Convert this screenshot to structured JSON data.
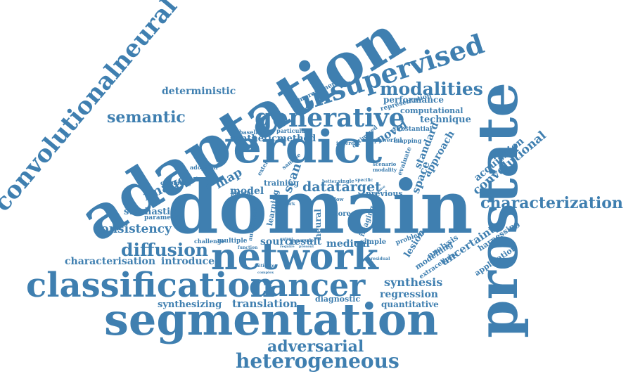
{
  "color": "#3f7fb0",
  "words": [
    {
      "id": "domain",
      "text": "domain"
    },
    {
      "id": "segmentation",
      "text": "segmentation"
    },
    {
      "id": "adaptation",
      "text": "adaptation"
    },
    {
      "id": "prostate",
      "text": "prostate"
    },
    {
      "id": "verdict",
      "text": "verdict"
    },
    {
      "id": "network",
      "text": "network"
    },
    {
      "id": "classification",
      "text": "classification"
    },
    {
      "id": "cancer",
      "text": "cancer"
    },
    {
      "id": "convolutionalneural",
      "text": "convolutionalneural"
    },
    {
      "id": "unsupervised",
      "text": "unsupervised"
    },
    {
      "id": "generative",
      "text": "generative"
    },
    {
      "id": "heterogeneous",
      "text": "heterogeneous"
    },
    {
      "id": "adversarial",
      "text": "adversarial"
    },
    {
      "id": "characterization",
      "text": "characterization"
    },
    {
      "id": "modalities",
      "text": "modalities"
    },
    {
      "id": "diffusion",
      "text": "diffusion"
    },
    {
      "id": "semantic",
      "text": "semantic"
    },
    {
      "id": "datatarget",
      "text": "datatarget"
    },
    {
      "id": "image",
      "text": "image"
    },
    {
      "id": "consistency",
      "text": "consistency"
    },
    {
      "id": "synthesis",
      "text": "synthesis"
    },
    {
      "id": "convolutional",
      "text": "convolutional"
    },
    {
      "id": "uncertainty",
      "text": "uncertainty"
    },
    {
      "id": "acquisition",
      "text": "acquisition"
    },
    {
      "id": "deterministic",
      "text": "deterministic"
    },
    {
      "id": "characterisation",
      "text": "characterisation"
    },
    {
      "id": "introduce",
      "text": "introduce"
    },
    {
      "id": "translation",
      "text": "translation"
    },
    {
      "id": "synthesizing",
      "text": "synthesizing"
    },
    {
      "id": "regression",
      "text": "regression"
    },
    {
      "id": "quantitative",
      "text": "quantitative"
    },
    {
      "id": "diagnostic",
      "text": "diagnostic"
    },
    {
      "id": "stochastic",
      "text": "stochastic"
    },
    {
      "id": "map",
      "text": "map"
    },
    {
      "id": "model",
      "text": "model"
    },
    {
      "id": "source",
      "text": "source"
    },
    {
      "id": "result",
      "text": "result"
    },
    {
      "id": "medical",
      "text": "medical"
    },
    {
      "id": "lesion",
      "text": "lesion"
    },
    {
      "id": "space",
      "text": "space"
    },
    {
      "id": "approach",
      "text": "approach"
    },
    {
      "id": "standard",
      "text": "standard"
    },
    {
      "id": "novel",
      "text": "novel"
    },
    {
      "id": "technique",
      "text": "technique"
    },
    {
      "id": "performance",
      "text": "performance"
    },
    {
      "id": "syntheticmethod",
      "text": "syntheticmethod"
    },
    {
      "id": "scan",
      "text": "scan"
    },
    {
      "id": "application",
      "text": "application"
    },
    {
      "id": "harnessing",
      "text": "harnessing"
    },
    {
      "id": "analysis",
      "text": "analysis"
    },
    {
      "id": "modelling",
      "text": "modelling"
    },
    {
      "id": "extracellular",
      "text": "extracellular"
    },
    {
      "id": "problem",
      "text": "problem"
    },
    {
      "id": "computational",
      "text": "computational"
    },
    {
      "id": "representation",
      "text": "representation"
    },
    {
      "id": "substantial",
      "text": "substantial"
    },
    {
      "id": "improvement",
      "text": "improvement"
    },
    {
      "id": "training",
      "text": "training"
    },
    {
      "id": "previous",
      "text": "previous"
    },
    {
      "id": "neural",
      "text": "neural"
    },
    {
      "id": "imaging",
      "text": "imaging"
    },
    {
      "id": "more",
      "text": "more"
    },
    {
      "id": "simple",
      "text": "simple"
    },
    {
      "id": "multiple",
      "text": "multiple"
    },
    {
      "id": "challenge",
      "text": "challenge"
    },
    {
      "id": "learning",
      "text": "learning"
    },
    {
      "id": "automated",
      "text": "automated"
    },
    {
      "id": "patient",
      "text": "patient"
    },
    {
      "id": "parametric",
      "text": "parametric"
    },
    {
      "id": "cytometry",
      "text": "cytometry"
    },
    {
      "id": "adoption",
      "text": "adoption"
    },
    {
      "id": "baseline",
      "text": "baseline"
    },
    {
      "id": "particular",
      "text": "particular"
    },
    {
      "id": "evaluate",
      "text": "evaluate"
    },
    {
      "id": "mapping",
      "text": "mapping"
    },
    {
      "id": "powerful",
      "text": "powerful"
    },
    {
      "id": "optimized",
      "text": "optimized"
    },
    {
      "id": "inherent",
      "text": "inherent"
    },
    {
      "id": "extend",
      "text": "extend"
    },
    {
      "id": "sample",
      "text": "sample"
    },
    {
      "id": "scenario",
      "text": "scenario"
    },
    {
      "id": "modality",
      "text": "modality"
    },
    {
      "id": "specific",
      "text": "specific"
    },
    {
      "id": "single",
      "text": "single"
    },
    {
      "id": "better",
      "text": "better"
    },
    {
      "id": "allow",
      "text": "allow"
    },
    {
      "id": "work",
      "text": "work"
    },
    {
      "id": "mitigate",
      "text": "mitigate"
    },
    {
      "id": "residual",
      "text": "residual"
    },
    {
      "id": "function",
      "text": "function"
    },
    {
      "id": "output",
      "text": "output"
    },
    {
      "id": "pseudo",
      "text": "pseudo"
    },
    {
      "id": "present",
      "text": "present"
    },
    {
      "id": "require",
      "text": "require"
    },
    {
      "id": "complex",
      "text": "complex"
    },
    {
      "id": "invasive",
      "text": "invasive"
    }
  ]
}
